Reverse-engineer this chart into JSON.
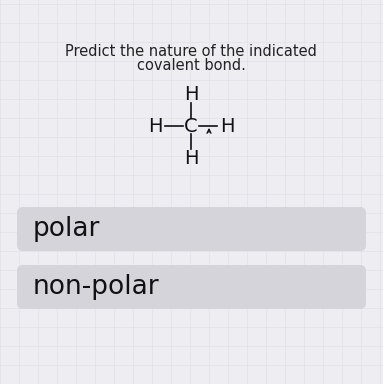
{
  "title_line1": "Predict the nature of the indicated",
  "title_line2": "covalent bond.",
  "bg_color": "#eeeeF2",
  "grid_color": "#e0e0e8",
  "button_bg": "#d4d4da",
  "button_text_color": "#111111",
  "button1_label": "polar",
  "button2_label": "non-polar",
  "title_fontsize": 10.5,
  "button_fontsize": 19,
  "molecule_fontsize": 14,
  "fig_width": 3.83,
  "fig_height": 3.84,
  "dpi": 100
}
